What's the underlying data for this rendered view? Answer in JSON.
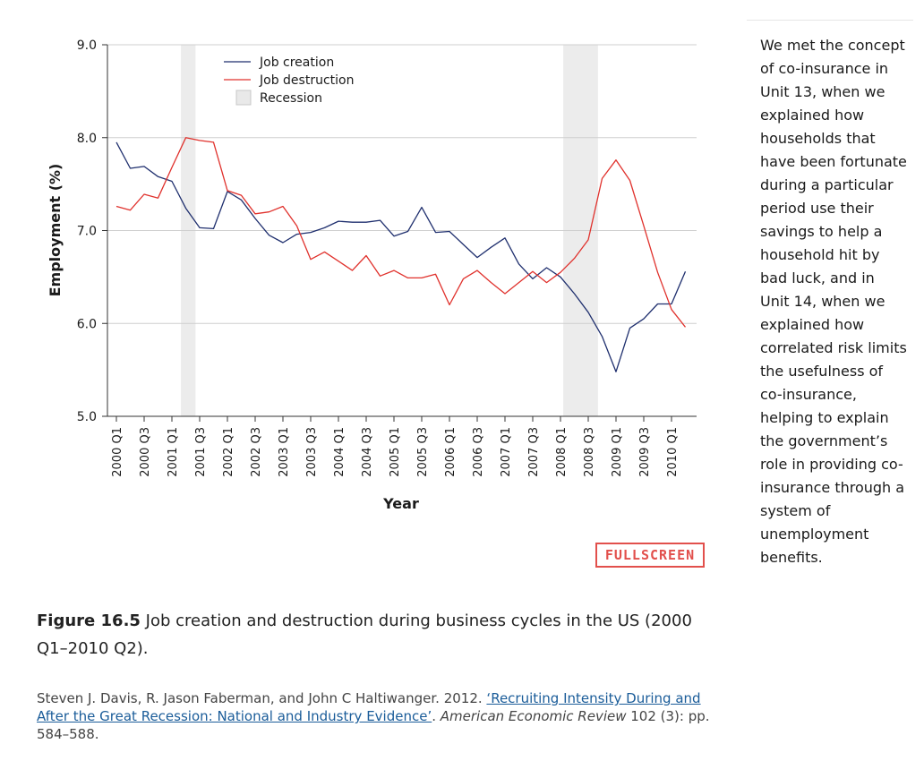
{
  "chart_data": {
    "type": "line",
    "title": "",
    "xlabel": "Year",
    "ylabel": "Employment (%)",
    "ylim": [
      5.0,
      9.0
    ],
    "yticks": [
      "9.0",
      "8.0",
      "7.0",
      "6.0",
      "5.0"
    ],
    "grid": true,
    "legend_position": "top-left",
    "x": [
      "2000 Q1",
      "2000 Q2",
      "2000 Q3",
      "2000 Q4",
      "2001 Q1",
      "2001 Q2",
      "2001 Q3",
      "2001 Q4",
      "2002 Q1",
      "2002 Q2",
      "2002 Q3",
      "2002 Q4",
      "2003 Q1",
      "2003 Q2",
      "2003 Q3",
      "2003 Q4",
      "2004 Q1",
      "2004 Q2",
      "2004 Q3",
      "2004 Q4",
      "2005 Q1",
      "2005 Q2",
      "2005 Q3",
      "2005 Q4",
      "2006 Q1",
      "2006 Q2",
      "2006 Q3",
      "2006 Q4",
      "2007 Q1",
      "2007 Q2",
      "2007 Q3",
      "2007 Q4",
      "2008 Q1",
      "2008 Q2",
      "2008 Q3",
      "2008 Q4",
      "2009 Q1",
      "2009 Q2",
      "2009 Q3",
      "2009 Q4",
      "2010 Q1",
      "2010 Q2"
    ],
    "xtick_labels": [
      "2000 Q1",
      "2000 Q3",
      "2001 Q1",
      "2001 Q3",
      "2002 Q1",
      "2002 Q3",
      "2003 Q1",
      "2003 Q3",
      "2004 Q1",
      "2004 Q3",
      "2005 Q1",
      "2005 Q3",
      "2006 Q1",
      "2006 Q3",
      "2007 Q1",
      "2007 Q3",
      "2008 Q1",
      "2008 Q3",
      "2009 Q1",
      "2009 Q3",
      "2010 Q1"
    ],
    "series": [
      {
        "name": "Job creation",
        "color": "#1f2f6e",
        "values": [
          7.95,
          7.67,
          7.69,
          7.58,
          7.53,
          7.24,
          7.03,
          7.02,
          7.42,
          7.33,
          7.13,
          6.95,
          6.87,
          6.96,
          6.98,
          7.03,
          7.1,
          7.09,
          7.09,
          7.11,
          6.94,
          6.99,
          7.25,
          6.98,
          6.99,
          6.85,
          6.71,
          6.82,
          6.92,
          6.64,
          6.48,
          6.6,
          6.5,
          6.32,
          6.12,
          5.86,
          5.48,
          5.95,
          6.05,
          6.21,
          6.21,
          6.56
        ]
      },
      {
        "name": "Job destruction",
        "color": "#e0312c",
        "values": [
          7.26,
          7.22,
          7.39,
          7.35,
          7.68,
          8.0,
          7.97,
          7.95,
          7.43,
          7.38,
          7.18,
          7.2,
          7.26,
          7.05,
          6.69,
          6.77,
          6.67,
          6.57,
          6.73,
          6.51,
          6.57,
          6.49,
          6.49,
          6.53,
          6.2,
          6.48,
          6.57,
          6.44,
          6.32,
          6.44,
          6.56,
          6.44,
          6.55,
          6.7,
          6.9,
          7.56,
          7.76,
          7.54,
          7.05,
          6.55,
          6.15,
          5.96
        ]
      }
    ],
    "recessions": [
      {
        "label": "Recession",
        "start": "2001 Q1",
        "end": "2001 Q4",
        "x_start": 4.65,
        "x_end": 5.7
      },
      {
        "label": "Recession",
        "start": "2007 Q4",
        "end": "2009 Q2",
        "x_start": 32.2,
        "x_end": 34.7
      }
    ],
    "legend": [
      {
        "label": "Job creation",
        "kind": "line",
        "color": "#1f2f6e"
      },
      {
        "label": "Job destruction",
        "kind": "line",
        "color": "#e0312c"
      },
      {
        "label": "Recession",
        "kind": "box",
        "color": "#e9e9e9"
      }
    ]
  },
  "fullscreen_label": "FULLSCREEN",
  "caption": {
    "figure_number": "Figure 16.5",
    "text": " Job creation and destruction during business cycles in the US (2000 Q1–2010 Q2)."
  },
  "source": {
    "authors": "Steven J. Davis, R. Jason Faberman, and John C Haltiwanger. 2012. ",
    "link_text": "‘Recruiting Intensity During and After the Great Recession: National and Industry Evidence’",
    "after_link": ". ",
    "journal": "American Economic Review",
    "details": " 102 (3): pp. 584–588."
  },
  "side_note": "We met the concept of co-insurance in Unit 13, when we explained how households that have been fortunate during a particular period use their savings to help a household hit by bad luck, and in Unit 14, when we explained how correlated risk limits the usefulness of co-insurance, helping to explain the government’s role in providing co-insurance through a system of unemployment benefits."
}
